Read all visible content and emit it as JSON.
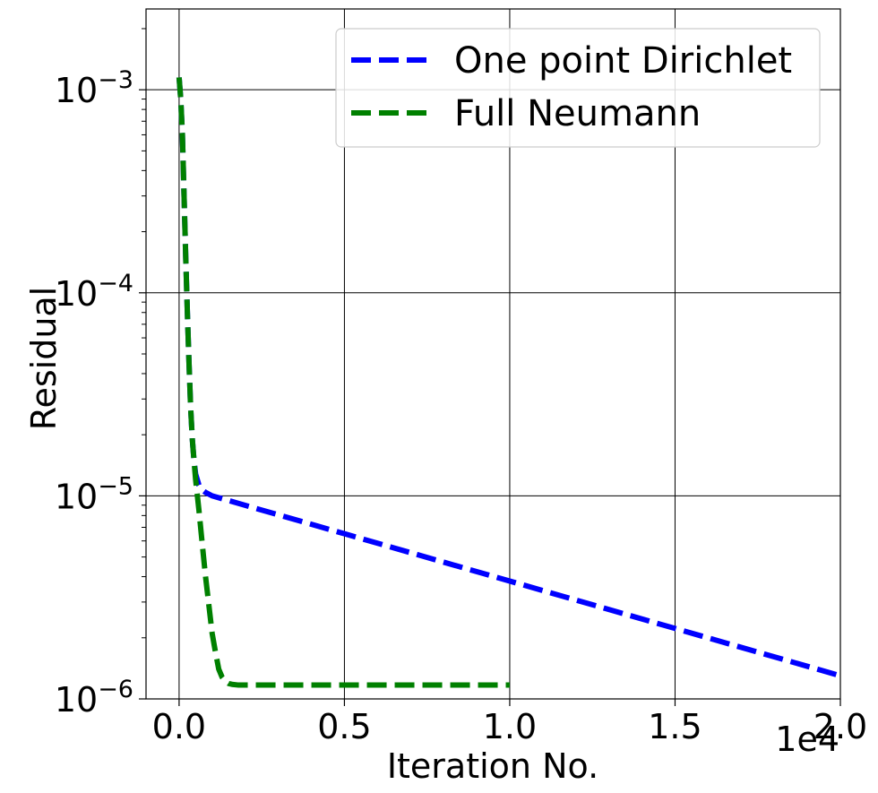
{
  "chart_data": {
    "type": "line",
    "title": "",
    "xlabel": "Iteration No.",
    "ylabel": "Residual",
    "x_offset_label": "1e4",
    "xscale": "linear",
    "yscale": "log",
    "xlim": [
      -1000,
      20000
    ],
    "ylim": [
      1e-06,
      0.0025
    ],
    "x_ticks": [
      0,
      5000,
      10000,
      15000,
      20000
    ],
    "x_tick_labels": [
      "0.0",
      "0.5",
      "1.0",
      "1.5",
      "2.0"
    ],
    "y_ticks": [
      1e-06,
      1e-05,
      0.0001,
      0.001
    ],
    "y_tick_labels": [
      {
        "base": "10",
        "exp": "−6"
      },
      {
        "base": "10",
        "exp": "−5"
      },
      {
        "base": "10",
        "exp": "−4"
      },
      {
        "base": "10",
        "exp": "−3"
      }
    ],
    "grid": true,
    "legend_position": "top-right",
    "series": [
      {
        "name": "One point Dirichlet",
        "color": "#0000ff",
        "line_style": "dashed",
        "x": [
          0,
          50,
          100,
          150,
          200,
          250,
          300,
          350,
          400,
          450,
          500,
          600,
          700,
          800,
          1000,
          20000
        ],
        "y": [
          0.00115,
          0.0009,
          0.0006,
          0.0003,
          0.00015,
          8e-05,
          4.5e-05,
          2.7e-05,
          1.9e-05,
          1.5e-05,
          1.28e-05,
          1.13e-05,
          1.07e-05,
          1.04e-05,
          1e-05,
          1.3e-06
        ]
      },
      {
        "name": "Full Neumann",
        "color": "#008000",
        "line_style": "dashed",
        "x": [
          0,
          50,
          100,
          150,
          200,
          250,
          300,
          350,
          400,
          450,
          500,
          600,
          700,
          800,
          900,
          1000,
          1100,
          1200,
          1300,
          1400,
          1500,
          1600,
          1800,
          2000,
          10000
        ],
        "y": [
          0.00115,
          0.0009,
          0.0006,
          0.0003,
          0.00015,
          8e-05,
          4.5e-05,
          2.7e-05,
          1.9e-05,
          1.5e-05,
          1.2e-05,
          8.5e-06,
          5.8e-06,
          4e-06,
          2.9e-06,
          2.1e-06,
          1.7e-06,
          1.4e-06,
          1.28e-06,
          1.22e-06,
          1.19e-06,
          1.18e-06,
          1.17e-06,
          1.17e-06,
          1.17e-06
        ]
      }
    ]
  }
}
